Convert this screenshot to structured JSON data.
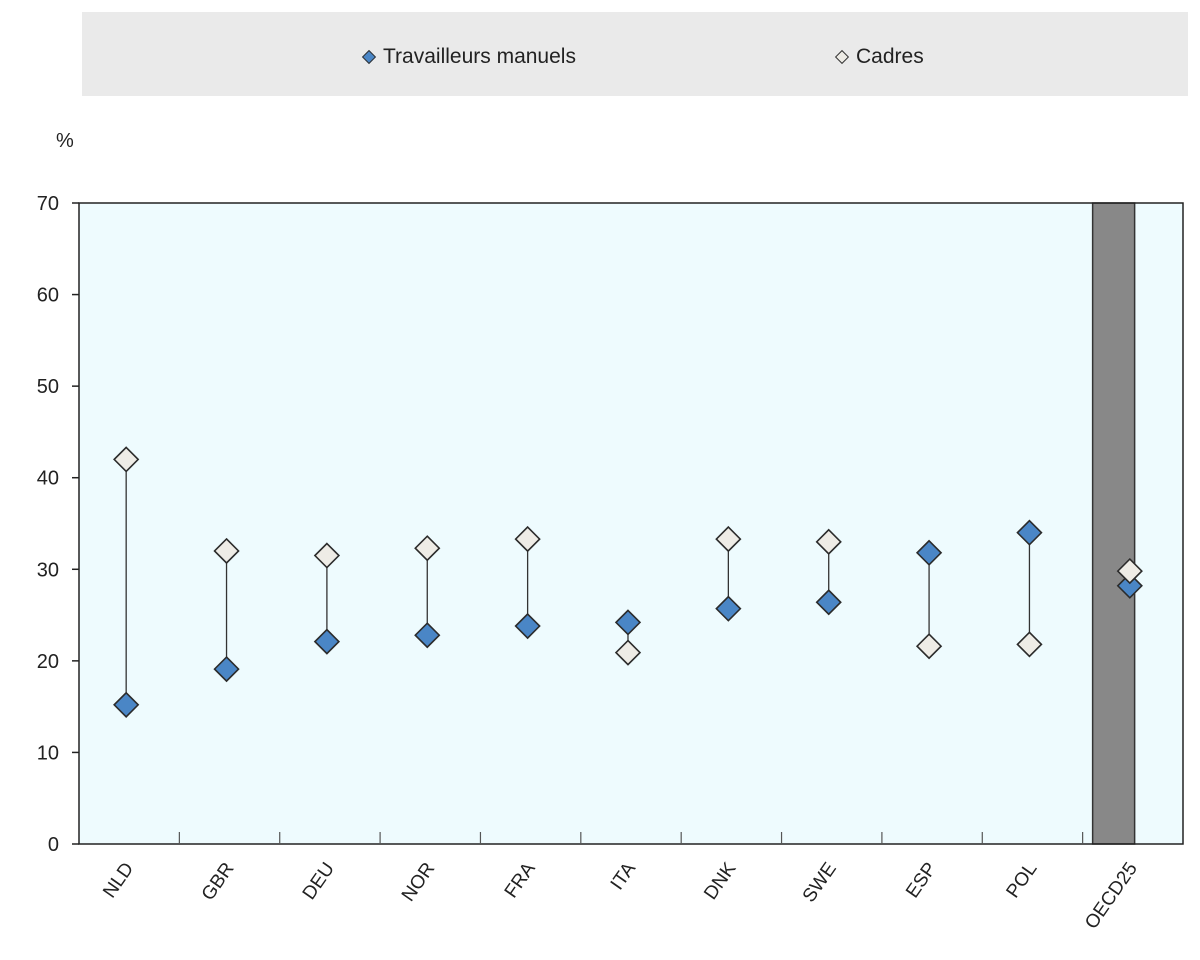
{
  "legend": {
    "manual_label": "Travailleurs manuels",
    "cadres_label": "Cadres"
  },
  "colors": {
    "manual": "#4a86c6",
    "cadres": "#eeece6",
    "plot_bg": "#eefbfe",
    "highlight": "#888888"
  },
  "chart_data": {
    "type": "scatter",
    "ylabel": "%",
    "ylim": [
      0,
      70
    ],
    "yticks": [
      0,
      10,
      20,
      30,
      40,
      50,
      60,
      70
    ],
    "grid": false,
    "legend_position": "top",
    "categories": [
      "NLD",
      "GBR",
      "DEU",
      "NOR",
      "FRA",
      "ITA",
      "DNK",
      "SWE",
      "ESP",
      "POL",
      "OECD25"
    ],
    "highlight_category": "OECD25",
    "series": [
      {
        "name": "Travailleurs manuels",
        "values": [
          15.2,
          19.1,
          22.1,
          22.8,
          23.8,
          24.2,
          25.7,
          26.4,
          31.8,
          34.0,
          28.2
        ]
      },
      {
        "name": "Cadres",
        "values": [
          42.0,
          32.0,
          31.5,
          32.3,
          33.3,
          20.9,
          33.3,
          33.0,
          21.6,
          21.8,
          29.8
        ]
      }
    ]
  }
}
